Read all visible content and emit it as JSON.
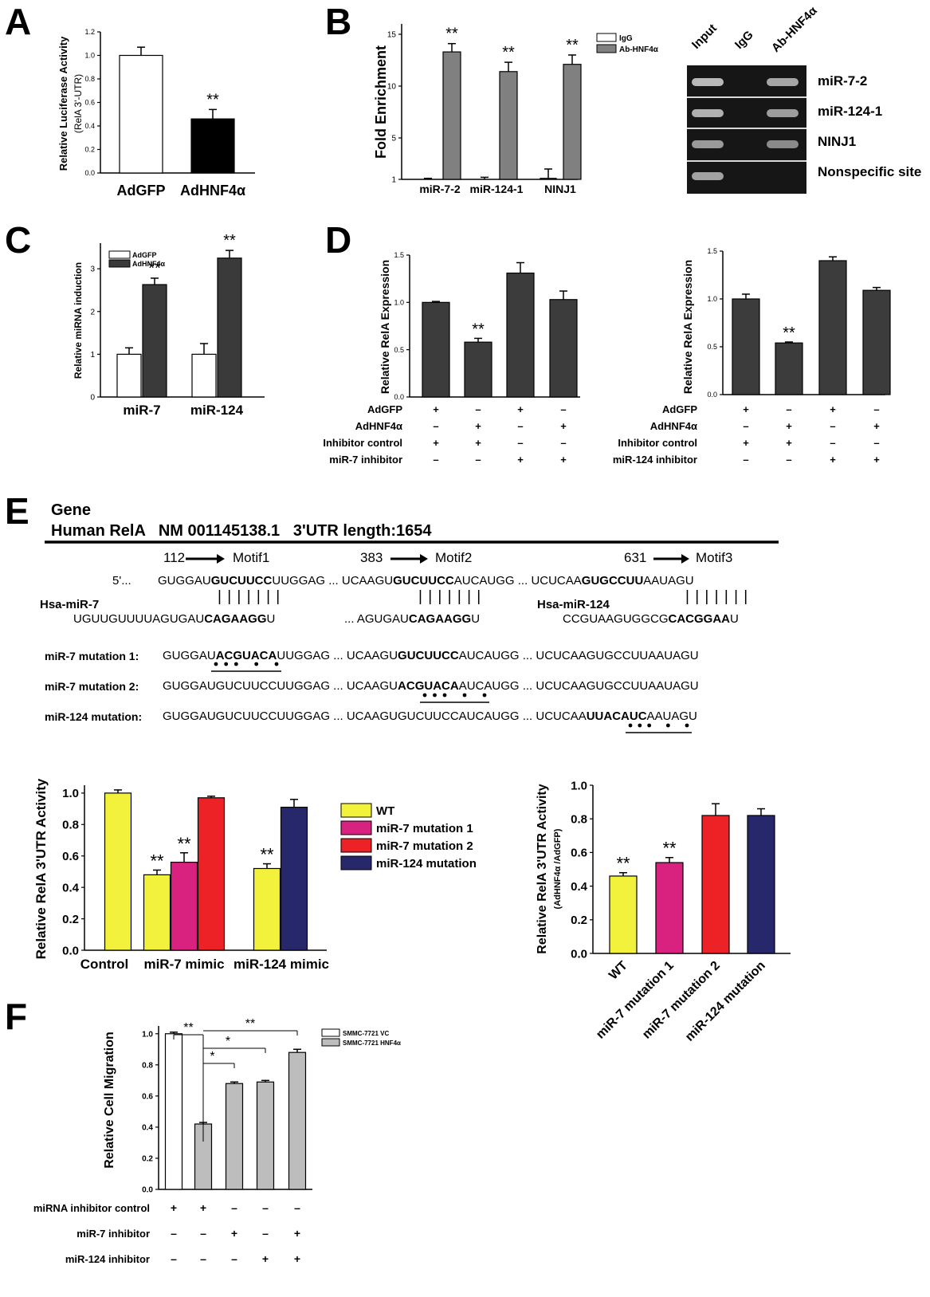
{
  "panels": {
    "A": {
      "letter": "A",
      "chart_data": {
        "type": "bar",
        "categories": [
          "AdGFP",
          "AdHNF4α"
        ],
        "values": [
          1.0,
          0.46
        ],
        "errors": [
          0.07,
          0.08
        ],
        "colors": [
          "#ffffff",
          "#000000"
        ],
        "sig": [
          "",
          "**"
        ],
        "ylabel": "Relative Luciferase Activity",
        "ylabel2": "(RelA 3'-UTR)",
        "ylim": [
          0,
          1.2
        ],
        "yticks": [
          "0.0",
          "0.2",
          "0.4",
          "0.6",
          "0.8",
          "1.0",
          "1.2"
        ]
      }
    },
    "B": {
      "letter": "B",
      "chart_data": {
        "type": "bar",
        "categories": [
          "miR-7-2",
          "miR-124-1",
          "NINJ1"
        ],
        "series": [
          {
            "name": "IgG",
            "values": [
              1.0,
              1.0,
              1.1
            ],
            "errors": [
              0.1,
              0.2,
              0.9
            ],
            "color": "#ffffff"
          },
          {
            "name": "Ab-HNF4α",
            "values": [
              13.3,
              11.4,
              12.1
            ],
            "errors": [
              0.8,
              0.9,
              0.9
            ],
            "color": "#808080"
          }
        ],
        "sig": [
          "**",
          "**",
          "**"
        ],
        "ylabel": "Fold Enrichment",
        "ylim": [
          1,
          16
        ],
        "yticks": [
          "1",
          "5",
          "10",
          "15"
        ]
      },
      "gel": {
        "lanes": [
          "Input",
          "IgG",
          "Ab-HNF4α"
        ],
        "rows": [
          {
            "label": "miR-7-2",
            "bands": [
              1,
              0,
              1
            ]
          },
          {
            "label": "miR-124-1",
            "bands": [
              1,
              0,
              1
            ]
          },
          {
            "label": "NINJ1",
            "bands": [
              1,
              0,
              1
            ]
          },
          {
            "label": "Nonspecific site",
            "bands": [
              1,
              0,
              0
            ]
          }
        ]
      }
    },
    "C": {
      "letter": "C",
      "chart_data": {
        "type": "bar",
        "categories": [
          "miR-7",
          "miR-124"
        ],
        "series": [
          {
            "name": "AdGFP",
            "values": [
              1.0,
              1.0
            ],
            "errors": [
              0.15,
              0.25
            ],
            "color": "#ffffff"
          },
          {
            "name": "AdHNF4α",
            "values": [
              2.63,
              3.25
            ],
            "errors": [
              0.15,
              0.18
            ],
            "color": "#3a3a3a"
          }
        ],
        "sig": [
          "**",
          "**"
        ],
        "ylabel": "Relative miRNA induction",
        "ylim": [
          0,
          3.6
        ],
        "yticks": [
          "0",
          "1",
          "2",
          "3"
        ]
      }
    },
    "D": {
      "letter": "D",
      "charts": [
        {
          "type": "bar",
          "values": [
            1.0,
            0.58,
            1.31,
            1.03
          ],
          "errors": [
            0.01,
            0.04,
            0.11,
            0.09
          ],
          "sig": [
            "",
            "**",
            "",
            ""
          ],
          "ylabel": "Relative RelA Expression",
          "ylim": [
            0,
            1.5
          ],
          "yticks": [
            "0.0",
            "0.5",
            "1.0",
            "1.5"
          ],
          "rows": [
            {
              "label": "AdGFP",
              "signs": [
                "+",
                "–",
                "+",
                "–"
              ]
            },
            {
              "label": "AdHNF4α",
              "signs": [
                "–",
                "+",
                "–",
                "+"
              ]
            },
            {
              "label": "Inhibitor control",
              "signs": [
                "+",
                "+",
                "–",
                "–"
              ]
            },
            {
              "label": "miR-7 inhibitor",
              "signs": [
                "–",
                "–",
                "+",
                "+"
              ]
            }
          ]
        },
        {
          "type": "bar",
          "values": [
            1.0,
            0.54,
            1.4,
            1.09
          ],
          "errors": [
            0.05,
            0.01,
            0.04,
            0.03
          ],
          "sig": [
            "",
            "**",
            "",
            ""
          ],
          "ylabel": "Relative RelA Expression",
          "ylim": [
            0,
            1.5
          ],
          "yticks": [
            "0.0",
            "0.5",
            "1.0",
            "1.5"
          ],
          "rows": [
            {
              "label": "AdGFP",
              "signs": [
                "+",
                "–",
                "+",
                "–"
              ]
            },
            {
              "label": "AdHNF4α",
              "signs": [
                "–",
                "+",
                "–",
                "+"
              ]
            },
            {
              "label": "Inhibitor control",
              "signs": [
                "+",
                "+",
                "–",
                "–"
              ]
            },
            {
              "label": "miR-124 inhibitor",
              "signs": [
                "–",
                "–",
                "+",
                "+"
              ]
            }
          ]
        }
      ]
    },
    "E": {
      "letter": "E",
      "gene_title": "Gene",
      "gene_line": "Human RelA   NM 001145138.1   3'UTR length:1654",
      "motifs": [
        {
          "pos": "112",
          "name": "Motif1"
        },
        {
          "pos": "383",
          "name": "Motif2"
        },
        {
          "pos": "631",
          "name": "Motif3"
        }
      ],
      "five_prime": "5'...",
      "utr_seq": {
        "m1a": "GUGGAU",
        "m1b": "GUCUUCC",
        "m1c": "UUGGAG",
        "dots1": " ... ",
        "m2a": "UCAAGU",
        "m2b": "GUCUUCC",
        "m2c": "AUCAUGG",
        "dots2": " ... ",
        "m3a": "UCUCAA",
        "m3b": "GUGCCUU",
        "m3c": "AAUAGU"
      },
      "pairs": "| | | | | | |",
      "mir7_label": "Hsa-miR-7",
      "mir124_label": "Hsa-miR-124",
      "mir7_seq": {
        "a": "UGUUGUUUUAGUGAU",
        "b": "CAGAAGG",
        "c": "U"
      },
      "mir7_seq2": {
        "a": "... AGUGAU",
        "b": "CAGAAGG",
        "c": "U"
      },
      "mir124_seq": {
        "a": "CCGUAAGUGGCG",
        "b": "CACGGAA",
        "c": "U"
      },
      "mutations": [
        {
          "label": "miR-7 mutation 1:",
          "s1": "GUGGAU",
          "s2": "ACGUACA",
          "s3": "UUGGAG ... UCAAGU",
          "s4": "GUCUUCC",
          "s5": "AUCAUGG ... UCUCAAGUGCCUUAAUAGU"
        },
        {
          "label": "miR-7 mutation 2:",
          "s1": "GUGGAUGUCUUCCUUGGAG ... UCAAGU",
          "s2": "ACGUACA",
          "s3": "AUCAUGG ... UCUCAAGUGCCUUAAUAGU",
          "s4": "",
          "s5": ""
        },
        {
          "label": "miR-124 mutation:",
          "s1": "GUGGAUGUCUUCCUUGGAG ... UCAAGUGUCUUCCAUCAUGG ... UCUCAA",
          "s2": "UUACAUC",
          "s3": "AAUAGU",
          "s4": "",
          "s5": ""
        }
      ],
      "chart_data": [
        {
          "type": "bar",
          "categories": [
            "Control",
            "miR-7 mimic",
            "miR-124 mimic"
          ],
          "groups": [
            [
              {
                "series": "WT",
                "value": 1.0,
                "error": 0.02
              }
            ],
            [
              {
                "series": "WT",
                "value": 0.48,
                "error": 0.03,
                "sig": "**"
              },
              {
                "series": "miR-7 mutation 1",
                "value": 0.56,
                "error": 0.06,
                "sig": "**"
              },
              {
                "series": "miR-7 mutation 2",
                "value": 0.97,
                "error": 0.01
              }
            ],
            [
              {
                "series": "WT",
                "value": 0.52,
                "error": 0.03,
                "sig": "**"
              },
              {
                "series": "miR-124 mutation",
                "value": 0.91,
                "error": 0.05
              }
            ]
          ],
          "series_colors": {
            "WT": "#f2f23c",
            "miR-7 mutation 1": "#d9217f",
            "miR-7 mutation 2": "#ec2227",
            "miR-124 mutation": "#27286b"
          },
          "legend": [
            "WT",
            "miR-7 mutation 1",
            "miR-7 mutation 2",
            "miR-124 mutation"
          ],
          "ylabel": "Relative RelA 3'UTR Activity",
          "ylim": [
            0,
            1.05
          ],
          "yticks": [
            "0.0",
            "0.2",
            "0.4",
            "0.6",
            "0.8",
            "1.0"
          ]
        },
        {
          "type": "bar",
          "categories": [
            "WT",
            "miR-7 mutation 1",
            "miR-7 mutation 2",
            "miR-124 mutation"
          ],
          "values": [
            0.46,
            0.54,
            0.82,
            0.82
          ],
          "errors": [
            0.02,
            0.03,
            0.07,
            0.04
          ],
          "colors": [
            "#f2f23c",
            "#d9217f",
            "#ec2227",
            "#27286b"
          ],
          "sig": [
            "**",
            "**",
            "",
            ""
          ],
          "ylabel": "Relative RelA 3'UTR Activity",
          "ylabel2": "(AdHNF4α /AdGFP)",
          "ylim": [
            0,
            1.0
          ],
          "yticks": [
            "0.0",
            "0.2",
            "0.4",
            "0.6",
            "0.8",
            "1.0"
          ]
        }
      ]
    },
    "F": {
      "letter": "F",
      "chart_data": {
        "type": "bar",
        "values": [
          1.0,
          0.42,
          0.68,
          0.69,
          0.88
        ],
        "errors": [
          0.01,
          0.01,
          0.01,
          0.01,
          0.02
        ],
        "series": [
          "SMMC-7721 VC",
          "SMMC-7721 HNF4α",
          "SMMC-7721 HNF4α",
          "SMMC-7721 HNF4α",
          "SMMC-7721 HNF4α"
        ],
        "legend": [
          {
            "name": "SMMC-7721 VC",
            "color": "#ffffff"
          },
          {
            "name": "SMMC-7721 HNF4α",
            "color": "#bdbdbd"
          }
        ],
        "brackets": [
          {
            "from": 0,
            "to": 1,
            "label": "**"
          },
          {
            "from": 1,
            "to": 4,
            "label": "**"
          },
          {
            "from": 1,
            "to": 3,
            "label": "*"
          },
          {
            "from": 1,
            "to": 2,
            "label": "*"
          }
        ],
        "ylabel": "Relative Cell Migration",
        "ylim": [
          0.0,
          1.05
        ],
        "yticks": [
          "0.0",
          "0.2",
          "0.4",
          "0.6",
          "0.8",
          "1.0"
        ],
        "rows": [
          {
            "label": "miRNA inhibitor control",
            "signs": [
              "+",
              "+",
              "–",
              "–",
              "–"
            ]
          },
          {
            "label": "miR-7 inhibitor",
            "signs": [
              "–",
              "–",
              "+",
              "–",
              "+"
            ]
          },
          {
            "label": "miR-124 inhibitor",
            "signs": [
              "–",
              "–",
              "–",
              "+",
              "+"
            ]
          }
        ]
      }
    }
  }
}
